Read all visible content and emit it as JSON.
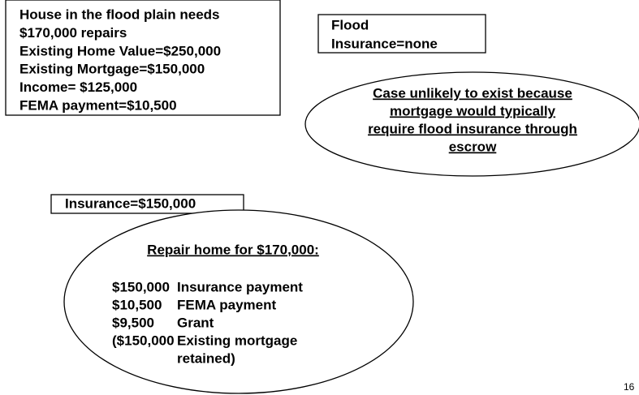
{
  "scenario_box": {
    "lines": [
      "House in the flood plain needs",
      "$170,000 repairs",
      "Existing Home Value=$250,000",
      "Existing Mortgage=$150,000",
      "Income= $125,000",
      "FEMA payment=$10,500"
    ]
  },
  "flood_box": {
    "lines": [
      "Flood",
      "Insurance=none"
    ]
  },
  "note_ellipse": {
    "lines": [
      "Case unlikely to exist because",
      "mortgage would typically",
      "require flood insurance through",
      "escrow"
    ]
  },
  "insurance_box": {
    "text": "Insurance=$150,000"
  },
  "plan_ellipse": {
    "title": "Repair home for $170,000:",
    "rows": [
      {
        "amount": "$150,000",
        "label": "Insurance payment"
      },
      {
        "amount": "$10,500",
        "label": "FEMA payment"
      },
      {
        "amount": "$9,500",
        "label": "Grant"
      },
      {
        "amount": "($150,000",
        "label": "Existing mortgage"
      },
      {
        "label": "retained)"
      }
    ]
  },
  "page_number": "16"
}
